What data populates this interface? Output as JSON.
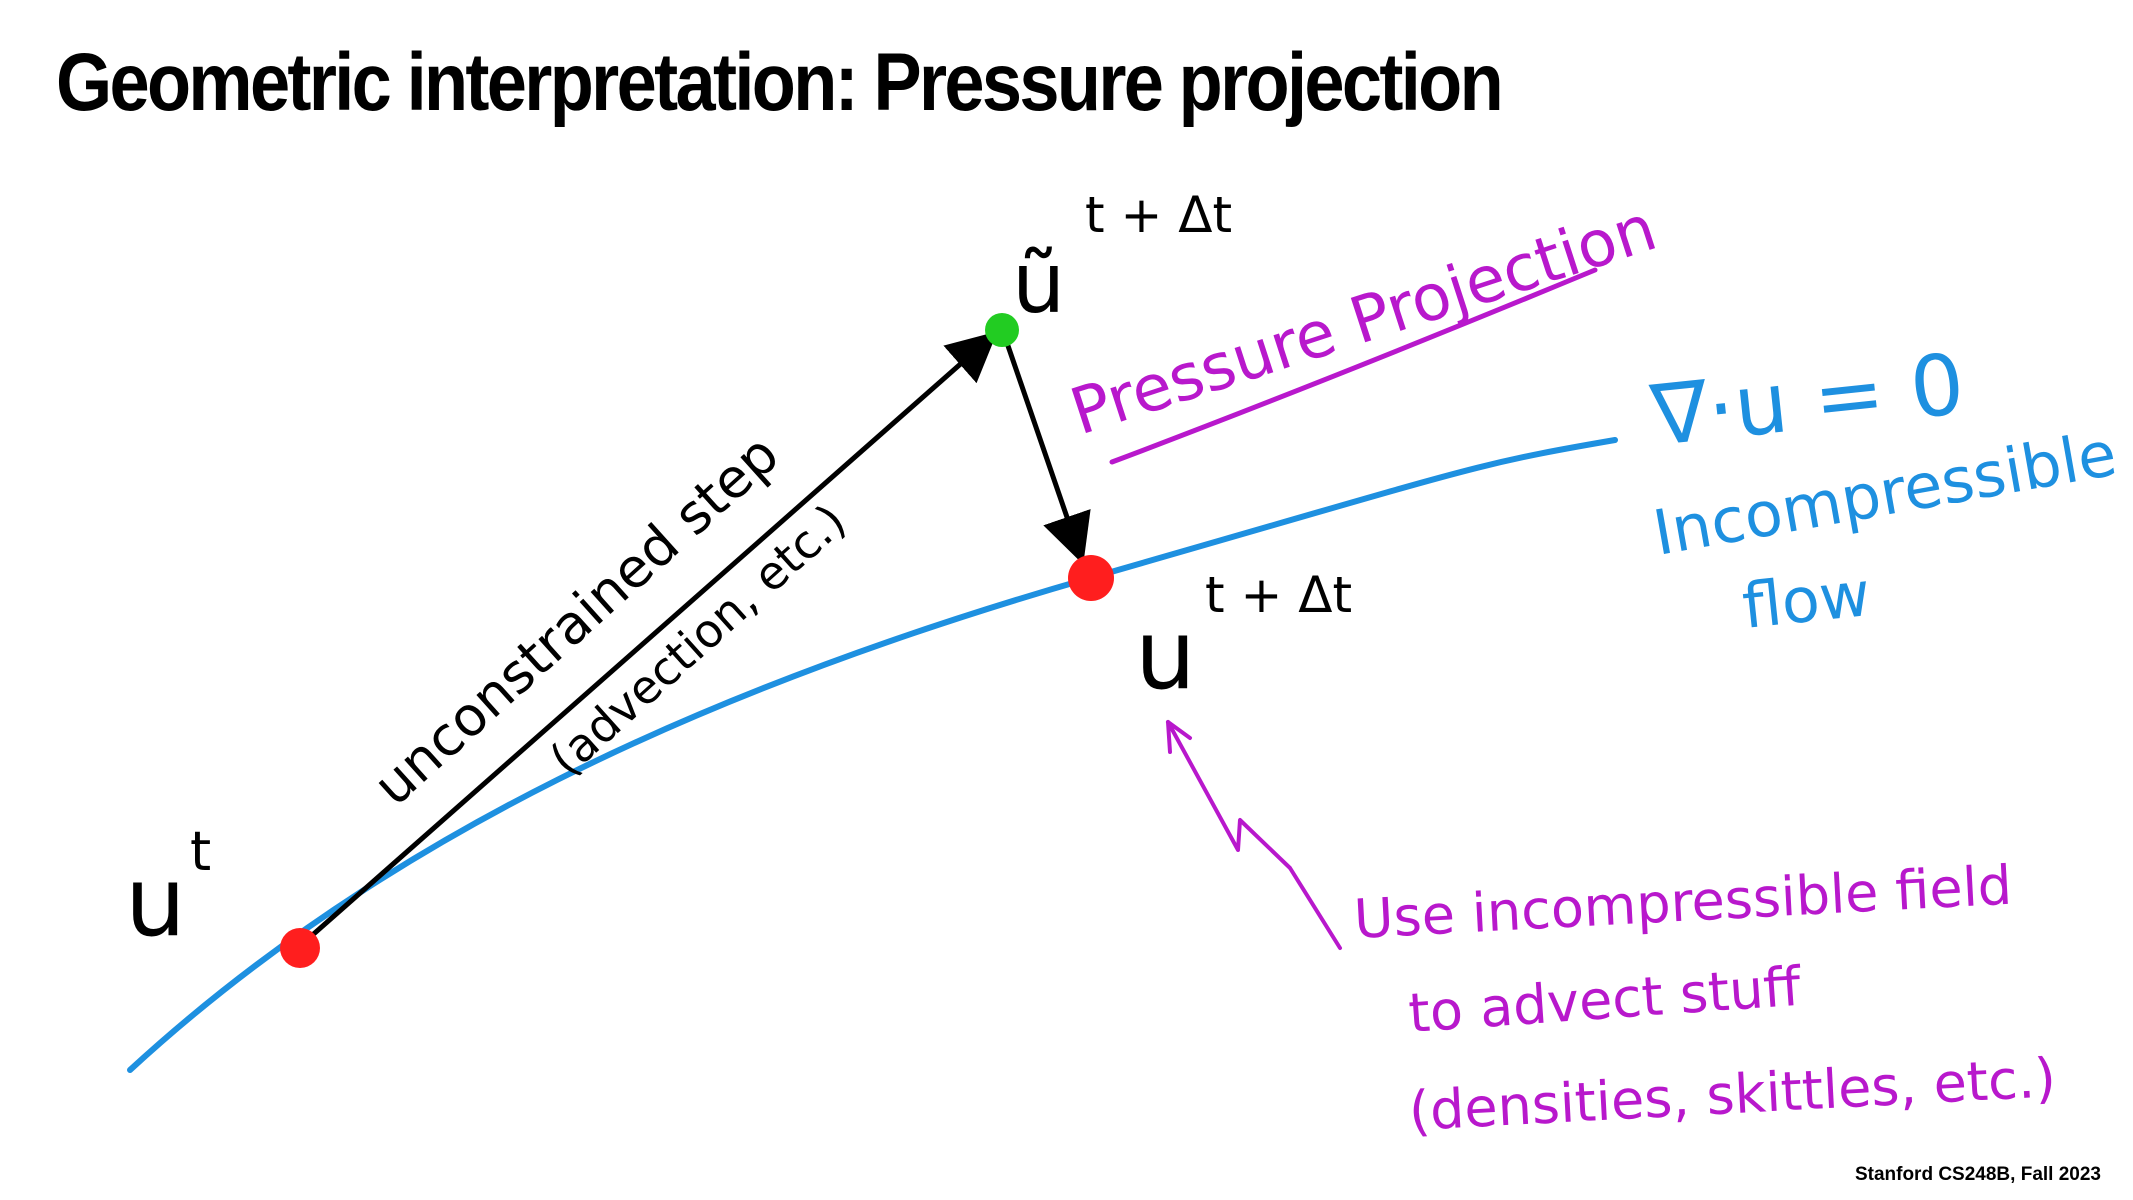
{
  "title": "Geometric interpretation: Pressure projection",
  "footer": "Stanford CS248B, Fall 2023",
  "colors": {
    "curve": "#1e90e0",
    "arrow": "#000000",
    "projection": "#b818cc",
    "point_current": "#ff1e1e",
    "point_intermediate": "#22cc22",
    "point_next": "#ff1e1e"
  },
  "labels": {
    "u_t": "u",
    "u_t_sup": "t",
    "u_tilde": "ũ",
    "u_tilde_sup": "t + Δt",
    "u_next": "u",
    "u_next_sup": "t + Δt",
    "step_line1": "unconstrained step",
    "step_line2": "(advection, etc.)",
    "projection": "Pressure Projection",
    "constraint": "∇·u = 0",
    "constraint_line2": "Incompressible",
    "constraint_line3": "flow",
    "note_line1": "Use incompressible field",
    "note_line2": "to advect stuff",
    "note_line3": "(densities, skittles, etc.)"
  }
}
